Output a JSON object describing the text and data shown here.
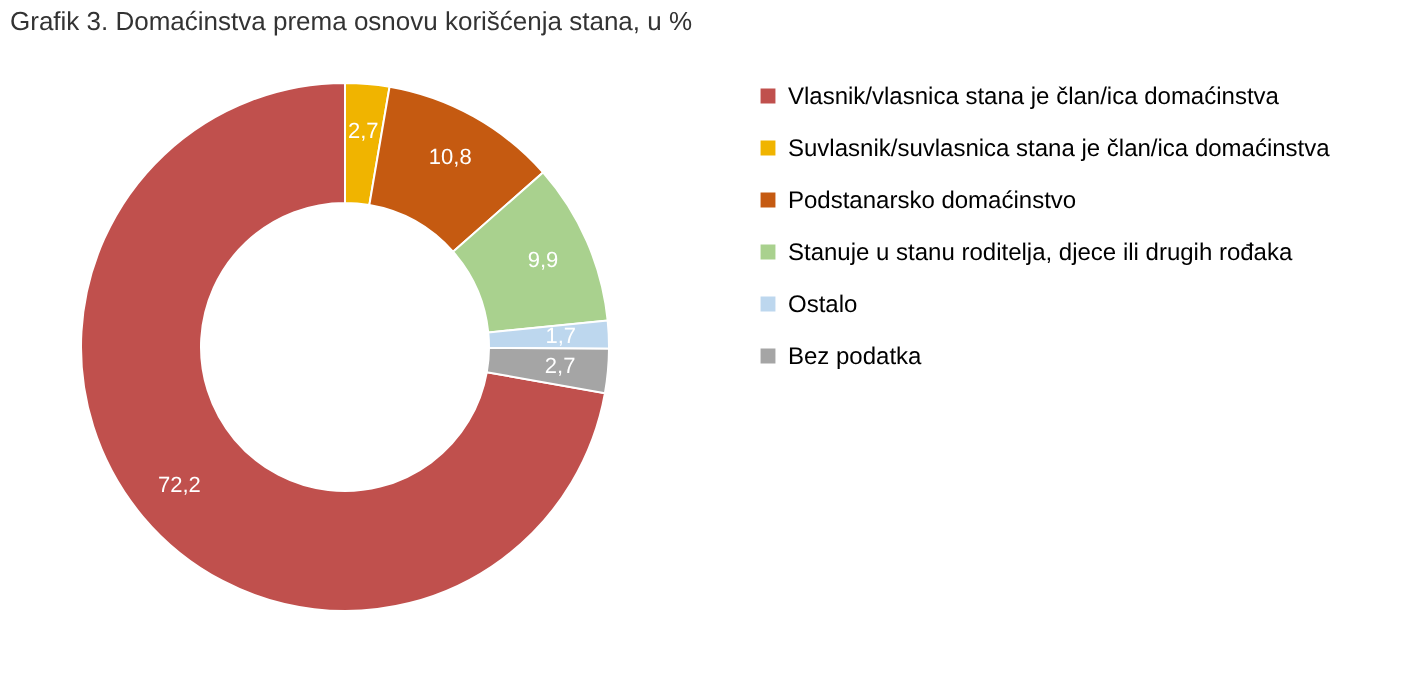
{
  "chart_data": {
    "type": "donut",
    "title": "Grafik 3. Domaćinstva prema osnovu korišćenja stana, u %",
    "categories": [
      "Vlasnik/vlasnica stana je član/ica domaćinstva",
      "Suvlasnik/suvlasnica stana je član/ica domaćinstva",
      "Podstanarsko domaćinstvo",
      "Stanuje u stanu roditelja, djece ili drugih rođaka",
      "Ostalo",
      "Bez podatka"
    ],
    "values": [
      72.2,
      2.7,
      10.8,
      9.9,
      1.7,
      2.7
    ],
    "value_labels": [
      "72,2",
      "2,7",
      "10,8",
      "9,9",
      "1,7",
      "2,7"
    ],
    "colors": [
      "#c0504d",
      "#f0b400",
      "#c55a11",
      "#a9d18e",
      "#bdd7ee",
      "#a5a5a5"
    ],
    "legend": "right"
  }
}
